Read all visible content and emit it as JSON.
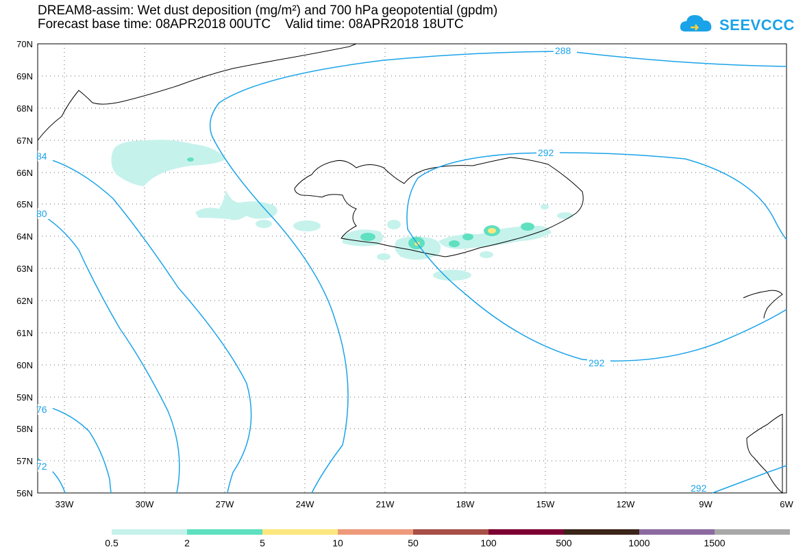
{
  "header": {
    "title_line1": "DREAM8-assim: Wet dust deposition (mg/m²) and 700 hPa geopotential (gpdm)",
    "title_line2": "Forecast base time: 08APR2018 00UTC    Valid time: 08APR2018 18UTC"
  },
  "logo": {
    "text": "SEEVCCC",
    "icon": "cloud-logo-icon",
    "color": "#1aa3e8"
  },
  "map": {
    "lon_range": [
      -34,
      -6
    ],
    "lat_range": [
      56,
      70
    ],
    "lat_labels": [
      "70N",
      "69N",
      "68N",
      "67N",
      "66N",
      "65N",
      "64N",
      "63N",
      "62N",
      "61N",
      "60N",
      "59N",
      "58N",
      "57N",
      "56N"
    ],
    "lon_labels": [
      "33W",
      "30W",
      "27W",
      "24W",
      "21W",
      "18W",
      "15W",
      "12W",
      "9W",
      "6W"
    ],
    "grid": "dotted",
    "contour_color": "#1aa3e8",
    "contour_labels": [
      "288",
      "292",
      "292",
      "292",
      "84",
      "80",
      "76",
      "72"
    ]
  },
  "colorbar": {
    "labels": [
      "0.5",
      "2",
      "5",
      "10",
      "50",
      "100",
      "500",
      "1000",
      "1500"
    ],
    "colors": [
      "#c6f2ec",
      "#5fe0c0",
      "#fbe77e",
      "#ee9a7a",
      "#a84f47",
      "#7c0033",
      "#3b2418",
      "#8c6aa0",
      "#a8a8a8"
    ]
  }
}
